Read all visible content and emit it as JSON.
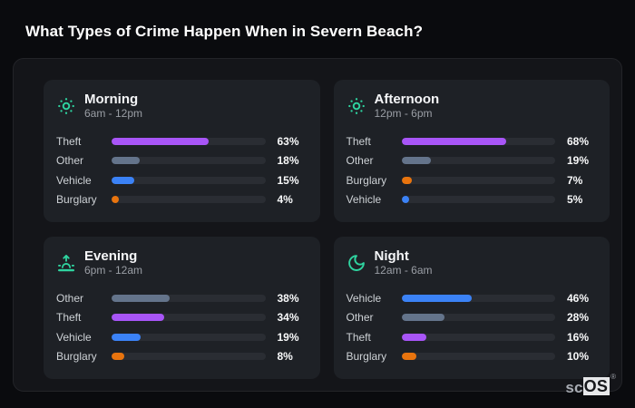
{
  "page": {
    "title": "What Types of Crime Happen When in Severn Beach?"
  },
  "theme": {
    "page_bg": "#0a0b0e",
    "panel_bg": "#141519",
    "panel_border": "#232428",
    "card_bg": "#1e2126",
    "track_bg": "#2a2d33",
    "icon_color": "#2fd4a0",
    "title_color": "#ffffff",
    "subtitle_color": "#9b9fa6",
    "label_color": "#ced2d6",
    "value_color": "#f8f9fa"
  },
  "category_colors": {
    "Theft": "#a855f7",
    "Other": "#64748b",
    "Vehicle": "#3b82f6",
    "Burglary": "#e8740e"
  },
  "chart_data": [
    {
      "id": "morning",
      "type": "bar",
      "orientation": "horizontal",
      "icon": "sun-icon",
      "title": "Morning",
      "subtitle": "6am - 12pm",
      "categories": [
        "Theft",
        "Other",
        "Vehicle",
        "Burglary"
      ],
      "values": [
        63,
        18,
        15,
        4
      ],
      "value_labels": [
        "63%",
        "18%",
        "15%",
        "4%"
      ],
      "xlim": [
        0,
        100
      ],
      "unit": "%"
    },
    {
      "id": "afternoon",
      "type": "bar",
      "orientation": "horizontal",
      "icon": "sun-icon",
      "title": "Afternoon",
      "subtitle": "12pm - 6pm",
      "categories": [
        "Theft",
        "Other",
        "Burglary",
        "Vehicle"
      ],
      "values": [
        68,
        19,
        7,
        5
      ],
      "value_labels": [
        "68%",
        "19%",
        "7%",
        "5%"
      ],
      "xlim": [
        0,
        100
      ],
      "unit": "%"
    },
    {
      "id": "evening",
      "type": "bar",
      "orientation": "horizontal",
      "icon": "sunrise-icon",
      "title": "Evening",
      "subtitle": "6pm - 12am",
      "categories": [
        "Other",
        "Theft",
        "Vehicle",
        "Burglary"
      ],
      "values": [
        38,
        34,
        19,
        8
      ],
      "value_labels": [
        "38%",
        "34%",
        "19%",
        "8%"
      ],
      "xlim": [
        0,
        100
      ],
      "unit": "%"
    },
    {
      "id": "night",
      "type": "bar",
      "orientation": "horizontal",
      "icon": "moon-icon",
      "title": "Night",
      "subtitle": "12am - 6am",
      "categories": [
        "Vehicle",
        "Other",
        "Theft",
        "Burglary"
      ],
      "values": [
        46,
        28,
        16,
        10
      ],
      "value_labels": [
        "46%",
        "28%",
        "16%",
        "10%"
      ],
      "xlim": [
        0,
        100
      ],
      "unit": "%"
    }
  ],
  "brand": {
    "prefix": "sc",
    "suffix": "OS",
    "registered_mark": "®"
  }
}
